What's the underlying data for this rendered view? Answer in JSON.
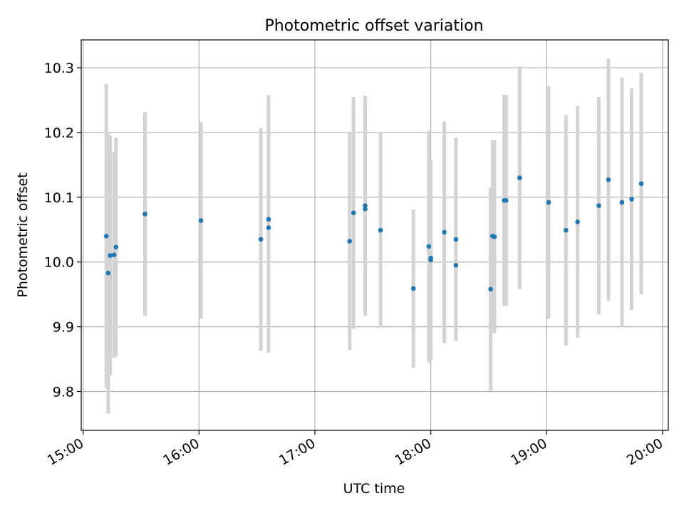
{
  "chart_data": {
    "type": "scatter",
    "title": "Photometric offset variation",
    "xlabel": "UTC time",
    "ylabel": "Photometric offset",
    "x_ticks": [
      "15:00",
      "16:00",
      "17:00",
      "18:00",
      "19:00",
      "20:00"
    ],
    "y_ticks": [
      "9.8",
      "9.9",
      "10.0",
      "10.1",
      "10.2",
      "10.3"
    ],
    "xlim": [
      "14:59",
      "20:03"
    ],
    "ylim": [
      9.74,
      10.343
    ],
    "grid": true,
    "colors": {
      "point": "#1f77b4",
      "errorbar": "#d3d3d3",
      "grid": "#b0b0b0"
    },
    "points": [
      {
        "x": "15:12",
        "y": 10.04,
        "err": 0.235
      },
      {
        "x": "15:13",
        "y": 9.983,
        "err": 0.217
      },
      {
        "x": "15:14",
        "y": 10.01,
        "err": 0.185
      },
      {
        "x": "15:16",
        "y": 10.011,
        "err": 0.159
      },
      {
        "x": "15:17",
        "y": 10.023,
        "err": 0.169
      },
      {
        "x": "15:32",
        "y": 10.074,
        "err": 0.157
      },
      {
        "x": "16:01",
        "y": 10.064,
        "err": 0.152
      },
      {
        "x": "16:32",
        "y": 10.035,
        "err": 0.172
      },
      {
        "x": "16:36",
        "y": 10.066,
        "err": 0.192
      },
      {
        "x": "16:36",
        "y": 10.053,
        "err": 0.193
      },
      {
        "x": "17:18",
        "y": 10.032,
        "err": 0.168
      },
      {
        "x": "17:20",
        "y": 10.076,
        "err": 0.179
      },
      {
        "x": "17:26",
        "y": 10.087,
        "err": 0.17
      },
      {
        "x": "17:26",
        "y": 10.082,
        "err": 0.16
      },
      {
        "x": "17:34",
        "y": 10.049,
        "err": 0.15
      },
      {
        "x": "17:51",
        "y": 9.959,
        "err": 0.122
      },
      {
        "x": "17:59",
        "y": 10.024,
        "err": 0.179
      },
      {
        "x": "18:00",
        "y": 10.003,
        "err": 0.155
      },
      {
        "x": "18:00",
        "y": 10.006,
        "err": 0.152
      },
      {
        "x": "18:07",
        "y": 10.046,
        "err": 0.171
      },
      {
        "x": "18:13",
        "y": 9.995,
        "err": 0.115
      },
      {
        "x": "18:13",
        "y": 10.035,
        "err": 0.157
      },
      {
        "x": "18:31",
        "y": 9.958,
        "err": 0.157
      },
      {
        "x": "18:32",
        "y": 10.04,
        "err": 0.148
      },
      {
        "x": "18:33",
        "y": 10.039,
        "err": 0.149
      },
      {
        "x": "18:38",
        "y": 10.095,
        "err": 0.163
      },
      {
        "x": "18:39",
        "y": 10.095,
        "err": 0.163
      },
      {
        "x": "18:46",
        "y": 10.13,
        "err": 0.172
      },
      {
        "x": "19:01",
        "y": 10.092,
        "err": 0.18
      },
      {
        "x": "19:10",
        "y": 10.049,
        "err": 0.178
      },
      {
        "x": "19:16",
        "y": 10.062,
        "err": 0.179
      },
      {
        "x": "19:27",
        "y": 10.087,
        "err": 0.168
      },
      {
        "x": "19:32",
        "y": 10.127,
        "err": 0.187
      },
      {
        "x": "19:39",
        "y": 10.092,
        "err": 0.193
      },
      {
        "x": "19:44",
        "y": 10.097,
        "err": 0.171
      },
      {
        "x": "19:49",
        "y": 10.121,
        "err": 0.171
      }
    ]
  }
}
